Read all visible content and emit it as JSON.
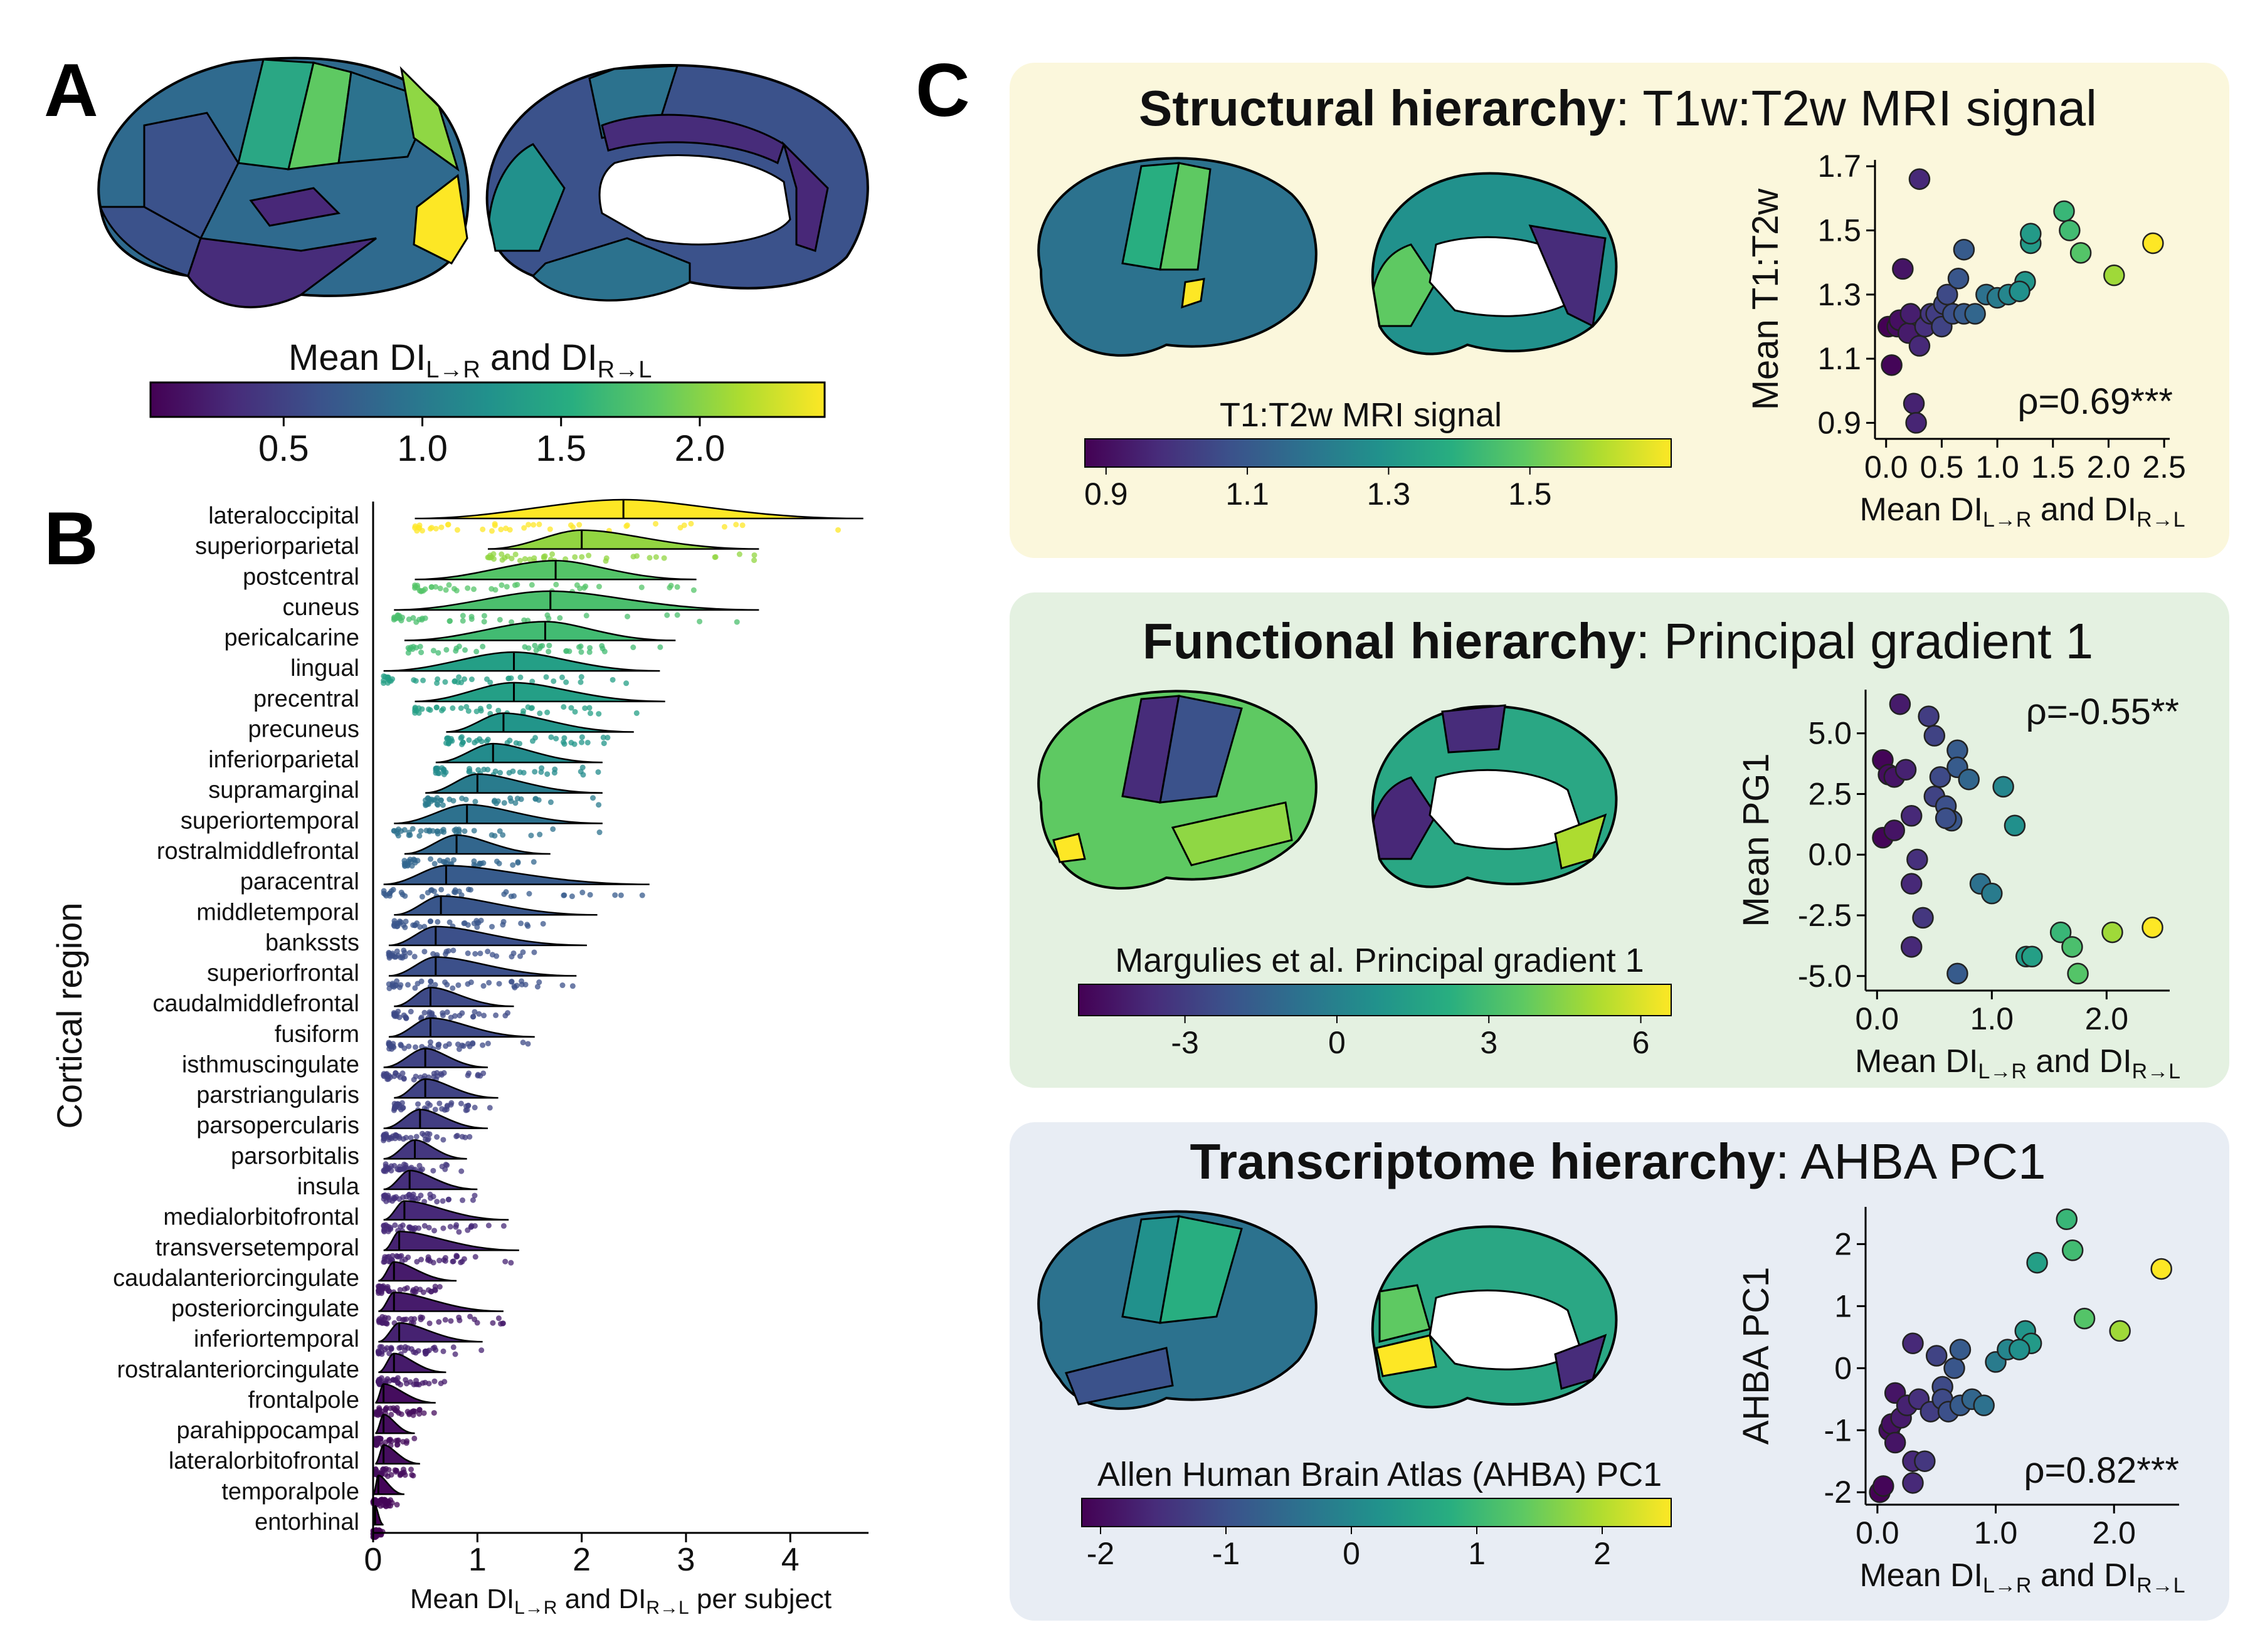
{
  "panels": {
    "a": "A",
    "b": "B",
    "c": "C"
  },
  "panel_a": {
    "colorbar_label_main": "Mean DI",
    "colorbar_sub1": "L→R",
    "colorbar_mid": " and DI",
    "colorbar_sub2": "R→L",
    "ticks": [
      "0.5",
      "1.0",
      "1.5",
      "2.0"
    ]
  },
  "chart_data": [
    {
      "id": "panel_b",
      "type": "violin_raincloud",
      "ylabel": "Cortical region",
      "xlabel_main": "Mean DI",
      "xlabel_sub1": "L→R",
      "xlabel_mid": " and DI",
      "xlabel_sub2": "R→L",
      "xlabel_suffix": " per subject",
      "xlim": [
        0,
        4.75
      ],
      "xticks": [
        "0",
        "1",
        "2",
        "3",
        "4"
      ],
      "regions": [
        "lateraloccipital",
        "superiorparietal",
        "postcentral",
        "cuneus",
        "pericalcarine",
        "lingual",
        "precentral",
        "precuneus",
        "inferiorparietal",
        "supramarginal",
        "superiortemporal",
        "rostralmiddlefrontal",
        "paracentral",
        "middletemporal",
        "bankssts",
        "superiorfrontal",
        "caudalmiddlefrontal",
        "fusiform",
        "isthmuscingulate",
        "parstriangularis",
        "parsopercularis",
        "parsorbitalis",
        "insula",
        "medialorbitofrontal",
        "transversetemporal",
        "caudalanteriorcingulate",
        "posteriorcingulate",
        "inferiortemporal",
        "rostralanteriorcingulate",
        "frontalpole",
        "parahippocampal",
        "lateralorbitofrontal",
        "temporalpole",
        "entorhinal"
      ],
      "medians": [
        2.4,
        2.0,
        1.75,
        1.7,
        1.65,
        1.35,
        1.35,
        1.25,
        1.15,
        1.0,
        0.9,
        0.8,
        0.7,
        0.65,
        0.6,
        0.6,
        0.55,
        0.55,
        0.5,
        0.5,
        0.45,
        0.4,
        0.35,
        0.3,
        0.25,
        0.2,
        0.2,
        0.25,
        0.2,
        0.1,
        0.1,
        0.1,
        0.05,
        0.02
      ],
      "ranges": [
        [
          0.4,
          4.7
        ],
        [
          1.1,
          3.7
        ],
        [
          0.4,
          3.1
        ],
        [
          0.2,
          3.7
        ],
        [
          0.3,
          2.9
        ],
        [
          0.1,
          2.75
        ],
        [
          0.4,
          2.8
        ],
        [
          0.7,
          2.5
        ],
        [
          0.6,
          2.2
        ],
        [
          0.5,
          2.2
        ],
        [
          0.2,
          2.2
        ],
        [
          0.3,
          1.7
        ],
        [
          0.1,
          2.65
        ],
        [
          0.2,
          2.15
        ],
        [
          0.15,
          2.05
        ],
        [
          0.15,
          1.95
        ],
        [
          0.2,
          1.35
        ],
        [
          0.15,
          1.55
        ],
        [
          0.1,
          1.1
        ],
        [
          0.2,
          1.2
        ],
        [
          0.1,
          1.1
        ],
        [
          0.1,
          0.9
        ],
        [
          0.1,
          1.0
        ],
        [
          0.1,
          1.3
        ],
        [
          0.1,
          1.4
        ],
        [
          0.05,
          0.8
        ],
        [
          0.05,
          1.25
        ],
        [
          0.05,
          1.05
        ],
        [
          0.05,
          0.7
        ],
        [
          0.02,
          0.6
        ],
        [
          0.02,
          0.4
        ],
        [
          0.02,
          0.45
        ],
        [
          0.0,
          0.3
        ],
        [
          0.0,
          0.1
        ]
      ]
    },
    {
      "id": "panel_c1",
      "type": "scatter",
      "title_bold": "Structural hierarchy",
      "title_rest": ": T1w:T2w MRI signal",
      "ylabel": "Mean T1:T2w",
      "xlabel_main": "Mean DI",
      "xlabel_sub1": "L→R",
      "xlabel_mid": " and DI",
      "xlabel_sub2": "R→L",
      "xlim": [
        -0.1,
        2.55
      ],
      "ylim": [
        0.85,
        1.72
      ],
      "xticks": [
        "0.0",
        "0.5",
        "1.0",
        "1.5",
        "2.0",
        "2.5"
      ],
      "yticks": [
        "0.9",
        "1.1",
        "1.3",
        "1.5",
        "1.7"
      ],
      "annotation": "ρ=0.69***",
      "brain_colorbar_label": "T1:T2w MRI signal",
      "brain_colorbar_ticks": [
        "0.9",
        "1.1",
        "1.3",
        "1.5"
      ],
      "points": [
        [
          0.02,
          1.2
        ],
        [
          0.05,
          1.08
        ],
        [
          0.1,
          1.2
        ],
        [
          0.12,
          1.22
        ],
        [
          0.15,
          1.38
        ],
        [
          0.2,
          1.18
        ],
        [
          0.22,
          1.24
        ],
        [
          0.25,
          0.96
        ],
        [
          0.27,
          0.9
        ],
        [
          0.3,
          1.66
        ],
        [
          0.3,
          1.14
        ],
        [
          0.35,
          1.2
        ],
        [
          0.4,
          1.24
        ],
        [
          0.45,
          1.24
        ],
        [
          0.5,
          1.2
        ],
        [
          0.52,
          1.27
        ],
        [
          0.55,
          1.3
        ],
        [
          0.6,
          1.24
        ],
        [
          0.65,
          1.35
        ],
        [
          0.7,
          1.44
        ],
        [
          0.7,
          1.24
        ],
        [
          0.8,
          1.24
        ],
        [
          0.9,
          1.3
        ],
        [
          1.0,
          1.29
        ],
        [
          1.1,
          1.3
        ],
        [
          1.25,
          1.34
        ],
        [
          1.3,
          1.46
        ],
        [
          1.3,
          1.49
        ],
        [
          1.6,
          1.56
        ],
        [
          1.65,
          1.5
        ],
        [
          1.75,
          1.43
        ],
        [
          2.05,
          1.36
        ],
        [
          2.4,
          1.46
        ],
        [
          1.2,
          1.31
        ]
      ]
    },
    {
      "id": "panel_c2",
      "type": "scatter",
      "title_bold": "Functional hierarchy",
      "title_rest": ": Principal gradient 1",
      "ylabel": "Mean PG1",
      "xlabel_main": "Mean DI",
      "xlabel_sub1": "L→R",
      "xlabel_mid": " and DI",
      "xlabel_sub2": "R→L",
      "xlim": [
        -0.1,
        2.55
      ],
      "ylim": [
        -5.6,
        6.8
      ],
      "xticks": [
        "0.0",
        "1.0",
        "2.0"
      ],
      "yticks": [
        "5.0",
        "2.5",
        "0.0",
        "-2.5",
        "-5.0"
      ],
      "annotation": "ρ=-0.55**",
      "brain_colorbar_label": "Margulies et al. Principal gradient 1",
      "brain_colorbar_ticks": [
        "-3",
        "0",
        "3",
        "6"
      ],
      "points": [
        [
          0.05,
          3.9
        ],
        [
          0.05,
          0.7
        ],
        [
          0.1,
          3.3
        ],
        [
          0.15,
          1.0
        ],
        [
          0.15,
          3.2
        ],
        [
          0.2,
          6.2
        ],
        [
          0.25,
          3.5
        ],
        [
          0.3,
          1.6
        ],
        [
          0.3,
          -1.2
        ],
        [
          0.3,
          -3.8
        ],
        [
          0.35,
          -0.2
        ],
        [
          0.4,
          -2.6
        ],
        [
          0.45,
          5.7
        ],
        [
          0.5,
          4.9
        ],
        [
          0.5,
          2.4
        ],
        [
          0.55,
          3.2
        ],
        [
          0.6,
          2.0
        ],
        [
          0.65,
          1.4
        ],
        [
          0.7,
          4.3
        ],
        [
          0.7,
          -4.9
        ],
        [
          0.7,
          3.6
        ],
        [
          0.8,
          3.1
        ],
        [
          0.9,
          -1.2
        ],
        [
          1.0,
          -1.6
        ],
        [
          1.1,
          2.8
        ],
        [
          1.2,
          1.2
        ],
        [
          1.3,
          -4.2
        ],
        [
          1.35,
          -4.2
        ],
        [
          1.6,
          -3.2
        ],
        [
          1.7,
          -3.8
        ],
        [
          1.75,
          -4.9
        ],
        [
          2.05,
          -3.2
        ],
        [
          2.4,
          -3.0
        ],
        [
          0.6,
          1.5
        ]
      ]
    },
    {
      "id": "panel_c3",
      "type": "scatter",
      "title_bold": "Transcriptome hierarchy",
      "title_rest": ": AHBA PC1",
      "ylabel": "AHBA PC1",
      "xlabel_main": "Mean DI",
      "xlabel_sub1": "L→R",
      "xlabel_mid": " and DI",
      "xlabel_sub2": "R→L",
      "xlim": [
        -0.1,
        2.55
      ],
      "ylim": [
        -2.2,
        2.6
      ],
      "xticks": [
        "0.0",
        "1.0",
        "2.0"
      ],
      "yticks": [
        "2",
        "1",
        "0",
        "-1",
        "-2"
      ],
      "annotation": "ρ=0.82***",
      "brain_colorbar_label": "Allen Human Brain Atlas (AHBA) PC1",
      "brain_colorbar_ticks": [
        "-2",
        "-1",
        "0",
        "1",
        "2"
      ],
      "points": [
        [
          0.02,
          -2.0
        ],
        [
          0.05,
          -1.9
        ],
        [
          0.1,
          -1.0
        ],
        [
          0.12,
          -0.9
        ],
        [
          0.15,
          -1.2
        ],
        [
          0.15,
          -0.4
        ],
        [
          0.2,
          -0.8
        ],
        [
          0.25,
          -0.6
        ],
        [
          0.3,
          -1.5
        ],
        [
          0.3,
          -1.85
        ],
        [
          0.3,
          0.4
        ],
        [
          0.35,
          -0.5
        ],
        [
          0.4,
          -1.5
        ],
        [
          0.45,
          -0.7
        ],
        [
          0.5,
          0.2
        ],
        [
          0.55,
          -0.3
        ],
        [
          0.55,
          -0.5
        ],
        [
          0.6,
          -0.7
        ],
        [
          0.65,
          0.0
        ],
        [
          0.7,
          0.3
        ],
        [
          0.7,
          -0.6
        ],
        [
          0.8,
          -0.5
        ],
        [
          0.9,
          -0.6
        ],
        [
          1.0,
          0.1
        ],
        [
          1.1,
          0.3
        ],
        [
          1.25,
          0.6
        ],
        [
          1.3,
          0.4
        ],
        [
          1.35,
          1.7
        ],
        [
          1.6,
          2.4
        ],
        [
          1.65,
          1.9
        ],
        [
          1.75,
          0.8
        ],
        [
          2.05,
          0.6
        ],
        [
          2.4,
          1.6
        ],
        [
          1.2,
          0.3
        ]
      ]
    }
  ]
}
